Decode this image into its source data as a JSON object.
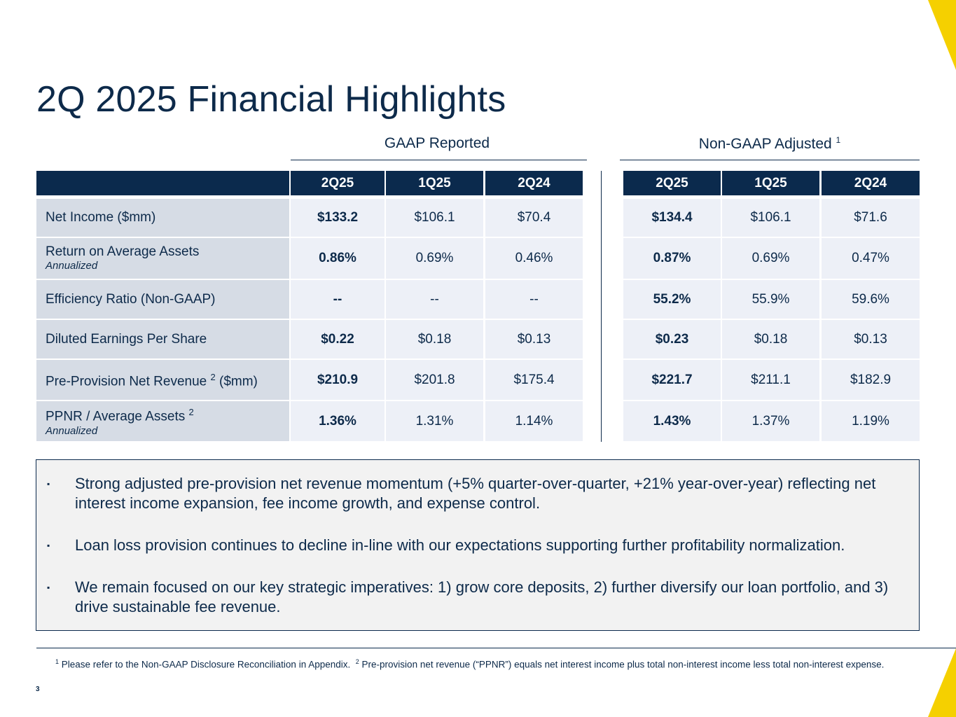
{
  "title": "2Q 2025 Financial Highlights",
  "groups": {
    "gaap": "GAAP Reported",
    "nongaap": "Non-GAAP Adjusted",
    "nongaap_sup": "1"
  },
  "headers": [
    "2Q25",
    "1Q25",
    "2Q24"
  ],
  "rows": [
    {
      "label": "Net Income ($mm)",
      "sup": "",
      "sub": "",
      "gaap": [
        "$133.2",
        "$106.1",
        "$70.4"
      ],
      "nongaap": [
        "$134.4",
        "$106.1",
        "$71.6"
      ]
    },
    {
      "label": "Return on Average Assets",
      "sup": "",
      "sub": "Annualized",
      "gaap": [
        "0.86%",
        "0.69%",
        "0.46%"
      ],
      "nongaap": [
        "0.87%",
        "0.69%",
        "0.47%"
      ]
    },
    {
      "label": "Efficiency Ratio (Non-GAAP)",
      "sup": "",
      "sub": "",
      "gaap": [
        "--",
        "--",
        "--"
      ],
      "nongaap": [
        "55.2%",
        "55.9%",
        "59.6%"
      ]
    },
    {
      "label": "Diluted Earnings Per Share",
      "sup": "",
      "sub": "",
      "gaap": [
        "$0.22",
        "$0.18",
        "$0.13"
      ],
      "nongaap": [
        "$0.23",
        "$0.18",
        "$0.13"
      ]
    },
    {
      "label": "Pre-Provision Net Revenue",
      "sup": "2",
      "suffix": " ($mm)",
      "sub": "",
      "gaap": [
        "$210.9",
        "$201.8",
        "$175.4"
      ],
      "nongaap": [
        "$221.7",
        "$211.1",
        "$182.9"
      ]
    },
    {
      "label": "PPNR / Average Assets",
      "sup": "2",
      "sub": "Annualized",
      "gaap": [
        "1.36%",
        "1.31%",
        "1.14%"
      ],
      "nongaap": [
        "1.43%",
        "1.37%",
        "1.19%"
      ]
    }
  ],
  "bullets": [
    "Strong adjusted pre-provision net revenue momentum (+5% quarter-over-quarter, +21% year-over-year) reflecting net interest income expansion, fee income growth, and expense control.",
    "Loan loss provision continues to decline in-line with our expectations supporting further profitability normalization.",
    "We remain focused on our key strategic imperatives: 1) grow core deposits, 2) further diversify our loan portfolio, and 3) drive sustainable fee revenue."
  ],
  "bullet_marker": "▪",
  "footnotes": {
    "note1_num": "1",
    "note1": "Please refer to the Non-GAAP Disclosure Reconciliation in Appendix.",
    "note2_num": "2",
    "note2": "Pre-provision net revenue (“PPNR”) equals net interest income plus total non-interest income less total non-interest expense."
  },
  "page_number": "3",
  "colors": {
    "navy": "#0b2a4d",
    "label_bg": "#d6dce5",
    "value_bg": "#edf0f7",
    "accent": "#f5d000"
  }
}
